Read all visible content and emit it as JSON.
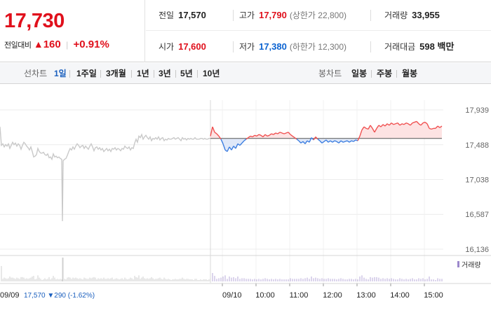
{
  "summary": {
    "current_price": "17,730",
    "change_label": "전일대비",
    "change_triangle": "▲",
    "change_amount": "160",
    "change_percent": "+0.91%",
    "prev_close_label": "전일",
    "prev_close": "17,570",
    "high_label": "고가",
    "high": "17,790",
    "upper_limit": "(상한가 22,800)",
    "volume_label": "거래량",
    "volume": "33,955",
    "open_label": "시가",
    "open": "17,600",
    "low_label": "저가",
    "low": "17,380",
    "lower_limit": "(하한가 12,300)",
    "amount_label": "거래대금",
    "amount": "598",
    "amount_unit": "백만"
  },
  "tabs": {
    "line_label": "선차트",
    "line_tabs": [
      "1일",
      "1주일",
      "3개월",
      "1년",
      "3년",
      "5년",
      "10년"
    ],
    "line_active": 0,
    "candle_label": "봉차트",
    "candle_tabs": [
      "일봉",
      "주봉",
      "월봉"
    ]
  },
  "chart_data": {
    "type": "line",
    "y_ticks": [
      "17,939",
      "17,488",
      "17,038",
      "16,587",
      "16,136"
    ],
    "y_tick_values": [
      17939,
      17488,
      17038,
      16587,
      16136
    ],
    "ylim": [
      16136,
      17939
    ],
    "baseline_price": 17570,
    "prev_day": {
      "date": "09/09",
      "close": "17,570",
      "change_symbol": "▼",
      "change": "290",
      "change_percent": "(-1.62%)",
      "line_color": "#c9c9c9"
    },
    "today": {
      "date": "09/10",
      "up_color": "#f05050",
      "down_color": "#3b7de0",
      "up_fill": "#fde3e3",
      "down_fill": "#dfe8f8"
    },
    "x_ticks": [
      "09/10",
      "10:00",
      "11:00",
      "12:00",
      "13:00",
      "14:00",
      "15:00"
    ],
    "volume_legend": "거래량",
    "prev_series": [
      {
        "t": 0,
        "v": 17720
      },
      {
        "t": 2,
        "v": 17480
      },
      {
        "t": 4,
        "v": 17500
      },
      {
        "t": 6,
        "v": 17460
      },
      {
        "t": 8,
        "v": 17490
      },
      {
        "t": 10,
        "v": 17470
      },
      {
        "t": 12,
        "v": 17500
      },
      {
        "t": 14,
        "v": 17440
      },
      {
        "t": 16,
        "v": 17480
      },
      {
        "t": 18,
        "v": 17520
      },
      {
        "t": 20,
        "v": 17490
      },
      {
        "t": 22,
        "v": 17510
      },
      {
        "t": 24,
        "v": 17470
      },
      {
        "t": 26,
        "v": 17500
      },
      {
        "t": 28,
        "v": 17480
      },
      {
        "t": 30,
        "v": 17430
      },
      {
        "t": 32,
        "v": 17480
      },
      {
        "t": 34,
        "v": 17520
      },
      {
        "t": 36,
        "v": 17500
      },
      {
        "t": 38,
        "v": 17470
      },
      {
        "t": 40,
        "v": 17450
      },
      {
        "t": 42,
        "v": 17420
      },
      {
        "t": 44,
        "v": 17460
      },
      {
        "t": 46,
        "v": 17400
      },
      {
        "t": 48,
        "v": 17330
      },
      {
        "t": 50,
        "v": 17340
      },
      {
        "t": 52,
        "v": 17360
      },
      {
        "t": 54,
        "v": 17440
      },
      {
        "t": 56,
        "v": 17400
      },
      {
        "t": 58,
        "v": 17380
      },
      {
        "t": 60,
        "v": 17380
      },
      {
        "t": 62,
        "v": 17390
      },
      {
        "t": 64,
        "v": 17360
      },
      {
        "t": 66,
        "v": 17350
      },
      {
        "t": 68,
        "v": 17370
      },
      {
        "t": 70,
        "v": 17320
      },
      {
        "t": 72,
        "v": 17330
      },
      {
        "t": 74,
        "v": 17300
      },
      {
        "t": 76,
        "v": 17370
      },
      {
        "t": 78,
        "v": 17330
      },
      {
        "t": 80,
        "v": 17340
      },
      {
        "t": 82,
        "v": 17320
      },
      {
        "t": 84,
        "v": 17330
      },
      {
        "t": 86,
        "v": 17310
      },
      {
        "t": 88,
        "v": 17300
      },
      {
        "t": 89,
        "v": 16500
      },
      {
        "t": 90,
        "v": 17280
      },
      {
        "t": 92,
        "v": 17300
      },
      {
        "t": 94,
        "v": 17310
      },
      {
        "t": 96,
        "v": 17350
      },
      {
        "t": 98,
        "v": 17400
      },
      {
        "t": 100,
        "v": 17440
      },
      {
        "t": 102,
        "v": 17420
      },
      {
        "t": 104,
        "v": 17460
      },
      {
        "t": 106,
        "v": 17430
      },
      {
        "t": 108,
        "v": 17470
      },
      {
        "t": 110,
        "v": 17500
      },
      {
        "t": 112,
        "v": 17480
      },
      {
        "t": 114,
        "v": 17450
      },
      {
        "t": 116,
        "v": 17470
      },
      {
        "t": 118,
        "v": 17480
      },
      {
        "t": 120,
        "v": 17440
      },
      {
        "t": 122,
        "v": 17470
      },
      {
        "t": 124,
        "v": 17450
      },
      {
        "t": 126,
        "v": 17430
      },
      {
        "t": 128,
        "v": 17470
      },
      {
        "t": 130,
        "v": 17500
      },
      {
        "t": 132,
        "v": 17460
      },
      {
        "t": 134,
        "v": 17410
      },
      {
        "t": 136,
        "v": 17450
      },
      {
        "t": 138,
        "v": 17460
      },
      {
        "t": 140,
        "v": 17430
      },
      {
        "t": 142,
        "v": 17450
      },
      {
        "t": 144,
        "v": 17420
      },
      {
        "t": 146,
        "v": 17440
      },
      {
        "t": 148,
        "v": 17400
      },
      {
        "t": 150,
        "v": 17420
      },
      {
        "t": 152,
        "v": 17440
      },
      {
        "t": 154,
        "v": 17410
      },
      {
        "t": 156,
        "v": 17430
      },
      {
        "t": 158,
        "v": 17400
      },
      {
        "t": 160,
        "v": 17440
      },
      {
        "t": 162,
        "v": 17430
      },
      {
        "t": 164,
        "v": 17450
      },
      {
        "t": 166,
        "v": 17420
      },
      {
        "t": 168,
        "v": 17440
      },
      {
        "t": 170,
        "v": 17430
      },
      {
        "t": 172,
        "v": 17410
      },
      {
        "t": 174,
        "v": 17440
      },
      {
        "t": 176,
        "v": 17430
      },
      {
        "t": 178,
        "v": 17470
      },
      {
        "t": 180,
        "v": 17450
      },
      {
        "t": 182,
        "v": 17440
      },
      {
        "t": 184,
        "v": 17460
      },
      {
        "t": 186,
        "v": 17420
      },
      {
        "t": 188,
        "v": 17450
      },
      {
        "t": 190,
        "v": 17440
      },
      {
        "t": 192,
        "v": 17510
      },
      {
        "t": 194,
        "v": 17560
      },
      {
        "t": 196,
        "v": 17520
      },
      {
        "t": 198,
        "v": 17600
      },
      {
        "t": 200,
        "v": 17580
      },
      {
        "t": 202,
        "v": 17620
      },
      {
        "t": 204,
        "v": 17560
      },
      {
        "t": 206,
        "v": 17590
      },
      {
        "t": 208,
        "v": 17610
      },
      {
        "t": 210,
        "v": 17580
      },
      {
        "t": 212,
        "v": 17560
      },
      {
        "t": 214,
        "v": 17590
      },
      {
        "t": 216,
        "v": 17540
      },
      {
        "t": 218,
        "v": 17570
      },
      {
        "t": 220,
        "v": 17560
      },
      {
        "t": 222,
        "v": 17580
      },
      {
        "t": 224,
        "v": 17560
      },
      {
        "t": 226,
        "v": 17590
      },
      {
        "t": 228,
        "v": 17550
      },
      {
        "t": 230,
        "v": 17570
      },
      {
        "t": 232,
        "v": 17580
      },
      {
        "t": 234,
        "v": 17540
      },
      {
        "t": 236,
        "v": 17560
      },
      {
        "t": 238,
        "v": 17550
      },
      {
        "t": 240,
        "v": 17570
      },
      {
        "t": 242,
        "v": 17560
      },
      {
        "t": 244,
        "v": 17560
      },
      {
        "t": 246,
        "v": 17570
      },
      {
        "t": 248,
        "v": 17580
      },
      {
        "t": 250,
        "v": 17560
      },
      {
        "t": 252,
        "v": 17570
      },
      {
        "t": 254,
        "v": 17580
      },
      {
        "t": 256,
        "v": 17560
      },
      {
        "t": 258,
        "v": 17540
      },
      {
        "t": 260,
        "v": 17580
      },
      {
        "t": 262,
        "v": 17560
      },
      {
        "t": 264,
        "v": 17570
      },
      {
        "t": 266,
        "v": 17550
      },
      {
        "t": 268,
        "v": 17570
      },
      {
        "t": 270,
        "v": 17560
      },
      {
        "t": 272,
        "v": 17570
      },
      {
        "t": 274,
        "v": 17560
      },
      {
        "t": 276,
        "v": 17560
      },
      {
        "t": 278,
        "v": 17580
      },
      {
        "t": 280,
        "v": 17560
      },
      {
        "t": 282,
        "v": 17560
      },
      {
        "t": 284,
        "v": 17560
      },
      {
        "t": 286,
        "v": 17570
      },
      {
        "t": 288,
        "v": 17570
      },
      {
        "t": 290,
        "v": 17560
      },
      {
        "t": 292,
        "v": 17570
      },
      {
        "t": 294,
        "v": 17560
      },
      {
        "t": 296,
        "v": 17560
      },
      {
        "t": 298,
        "v": 17570
      },
      {
        "t": 300,
        "v": 17570
      }
    ],
    "today_series": [
      {
        "t": 300,
        "v": 17600
      },
      {
        "t": 303,
        "v": 17720
      },
      {
        "t": 306,
        "v": 17650
      },
      {
        "t": 309,
        "v": 17630
      },
      {
        "t": 312,
        "v": 17600
      },
      {
        "t": 315,
        "v": 17560
      },
      {
        "t": 318,
        "v": 17500
      },
      {
        "t": 321,
        "v": 17420
      },
      {
        "t": 324,
        "v": 17400
      },
      {
        "t": 327,
        "v": 17460
      },
      {
        "t": 330,
        "v": 17420
      },
      {
        "t": 333,
        "v": 17470
      },
      {
        "t": 336,
        "v": 17440
      },
      {
        "t": 339,
        "v": 17500
      },
      {
        "t": 342,
        "v": 17480
      },
      {
        "t": 345,
        "v": 17510
      },
      {
        "t": 348,
        "v": 17540
      },
      {
        "t": 351,
        "v": 17560
      },
      {
        "t": 354,
        "v": 17580
      },
      {
        "t": 357,
        "v": 17600
      },
      {
        "t": 360,
        "v": 17590
      },
      {
        "t": 363,
        "v": 17610
      },
      {
        "t": 366,
        "v": 17600
      },
      {
        "t": 369,
        "v": 17620
      },
      {
        "t": 372,
        "v": 17610
      },
      {
        "t": 375,
        "v": 17590
      },
      {
        "t": 378,
        "v": 17620
      },
      {
        "t": 381,
        "v": 17600
      },
      {
        "t": 384,
        "v": 17610
      },
      {
        "t": 387,
        "v": 17630
      },
      {
        "t": 390,
        "v": 17620
      },
      {
        "t": 393,
        "v": 17640
      },
      {
        "t": 396,
        "v": 17630
      },
      {
        "t": 399,
        "v": 17650
      },
      {
        "t": 402,
        "v": 17640
      },
      {
        "t": 405,
        "v": 17630
      },
      {
        "t": 408,
        "v": 17640
      },
      {
        "t": 411,
        "v": 17650
      },
      {
        "t": 414,
        "v": 17620
      },
      {
        "t": 417,
        "v": 17600
      },
      {
        "t": 420,
        "v": 17580
      },
      {
        "t": 423,
        "v": 17560
      },
      {
        "t": 426,
        "v": 17540
      },
      {
        "t": 429,
        "v": 17510
      },
      {
        "t": 432,
        "v": 17530
      },
      {
        "t": 435,
        "v": 17500
      },
      {
        "t": 438,
        "v": 17540
      },
      {
        "t": 441,
        "v": 17520
      },
      {
        "t": 444,
        "v": 17580
      },
      {
        "t": 447,
        "v": 17550
      },
      {
        "t": 450,
        "v": 17590
      },
      {
        "t": 453,
        "v": 17560
      },
      {
        "t": 456,
        "v": 17540
      },
      {
        "t": 459,
        "v": 17510
      },
      {
        "t": 462,
        "v": 17530
      },
      {
        "t": 465,
        "v": 17550
      },
      {
        "t": 468,
        "v": 17520
      },
      {
        "t": 471,
        "v": 17540
      },
      {
        "t": 474,
        "v": 17520
      },
      {
        "t": 477,
        "v": 17540
      },
      {
        "t": 480,
        "v": 17530
      },
      {
        "t": 483,
        "v": 17510
      },
      {
        "t": 486,
        "v": 17540
      },
      {
        "t": 489,
        "v": 17520
      },
      {
        "t": 492,
        "v": 17530
      },
      {
        "t": 495,
        "v": 17540
      },
      {
        "t": 498,
        "v": 17520
      },
      {
        "t": 501,
        "v": 17540
      },
      {
        "t": 504,
        "v": 17530
      },
      {
        "t": 507,
        "v": 17550
      },
      {
        "t": 510,
        "v": 17540
      },
      {
        "t": 513,
        "v": 17600
      },
      {
        "t": 516,
        "v": 17680
      },
      {
        "t": 519,
        "v": 17720
      },
      {
        "t": 522,
        "v": 17700
      },
      {
        "t": 525,
        "v": 17690
      },
      {
        "t": 528,
        "v": 17740
      },
      {
        "t": 531,
        "v": 17700
      },
      {
        "t": 534,
        "v": 17650
      },
      {
        "t": 537,
        "v": 17700
      },
      {
        "t": 540,
        "v": 17740
      },
      {
        "t": 543,
        "v": 17720
      },
      {
        "t": 546,
        "v": 17750
      },
      {
        "t": 549,
        "v": 17730
      },
      {
        "t": 552,
        "v": 17760
      },
      {
        "t": 555,
        "v": 17740
      },
      {
        "t": 558,
        "v": 17770
      },
      {
        "t": 561,
        "v": 17750
      },
      {
        "t": 564,
        "v": 17760
      },
      {
        "t": 567,
        "v": 17770
      },
      {
        "t": 570,
        "v": 17740
      },
      {
        "t": 573,
        "v": 17760
      },
      {
        "t": 576,
        "v": 17750
      },
      {
        "t": 579,
        "v": 17770
      },
      {
        "t": 582,
        "v": 17760
      },
      {
        "t": 585,
        "v": 17740
      },
      {
        "t": 588,
        "v": 17770
      },
      {
        "t": 591,
        "v": 17780
      },
      {
        "t": 594,
        "v": 17790
      },
      {
        "t": 597,
        "v": 17760
      },
      {
        "t": 600,
        "v": 17740
      },
      {
        "t": 603,
        "v": 17770
      },
      {
        "t": 606,
        "v": 17780
      },
      {
        "t": 609,
        "v": 17760
      },
      {
        "t": 612,
        "v": 17700
      },
      {
        "t": 615,
        "v": 17690
      },
      {
        "t": 618,
        "v": 17700
      },
      {
        "t": 621,
        "v": 17700
      },
      {
        "t": 624,
        "v": 17730
      },
      {
        "t": 627,
        "v": 17710
      },
      {
        "t": 630,
        "v": 17730
      }
    ]
  }
}
